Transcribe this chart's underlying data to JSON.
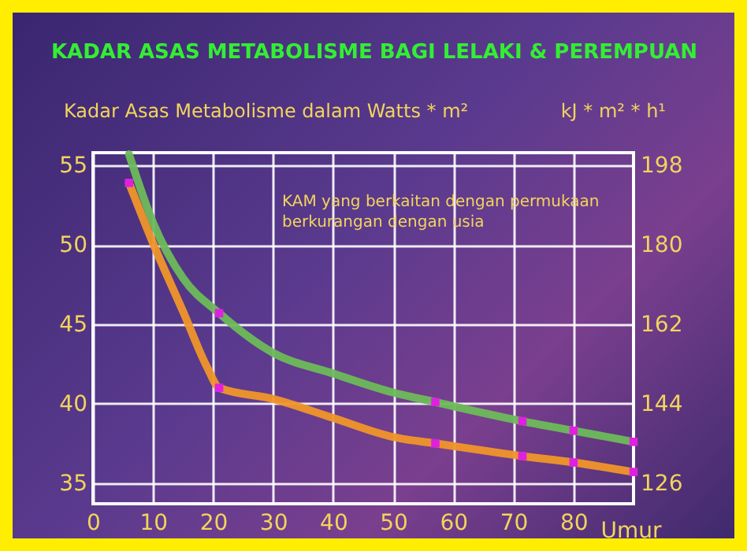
{
  "chart_data": {
    "type": "line",
    "title": "KADAR ASAS METABOLISME BAGI LELAKI & PEREMPUAN",
    "ylabel": "Kadar Asas Metabolisme dalam Watts * m²",
    "y2label": "kJ * m² * h¹",
    "xlabel": "Umur",
    "annotations": [
      "KAM yang berkaitan dengan permukaan berkurangan dengan usia"
    ],
    "xlim": [
      0,
      90
    ],
    "xticks": [
      0,
      10,
      20,
      30,
      40,
      50,
      60,
      70,
      80
    ],
    "ylim": [
      33.7,
      55.8
    ],
    "yticks": [
      35,
      40,
      45,
      50,
      55
    ],
    "y2lim": [
      121.3,
      200.9
    ],
    "y2ticks": [
      126,
      144,
      162,
      180,
      198
    ],
    "grid": true,
    "series": [
      {
        "type": "line",
        "color": "#6dbb5a",
        "x": [
          6,
          10,
          15,
          21,
          30,
          40,
          50,
          57,
          71.5,
          80,
          90
        ],
        "values": [
          55.7,
          51.4,
          47.9,
          45.7,
          43.2,
          41.9,
          40.7,
          40.1,
          38.9,
          38.3,
          37.6
        ]
      },
      {
        "type": "line",
        "color": "#f0952a",
        "x": [
          6,
          10,
          15,
          19,
          21,
          30,
          40,
          50,
          57,
          71.5,
          80,
          90
        ],
        "values": [
          53.9,
          50.1,
          45.8,
          42.3,
          41.0,
          40.3,
          39.1,
          37.9,
          37.5,
          36.7,
          36.3,
          35.7
        ]
      },
      {
        "type": "scatter",
        "color": "#e020e0",
        "x": [
          21,
          57,
          71.5,
          80,
          90,
          6,
          21,
          57,
          71.5,
          80,
          90
        ],
        "values": [
          45.7,
          40.1,
          38.9,
          38.3,
          37.6,
          53.9,
          41.0,
          37.5,
          36.7,
          36.3,
          35.7
        ]
      }
    ]
  }
}
